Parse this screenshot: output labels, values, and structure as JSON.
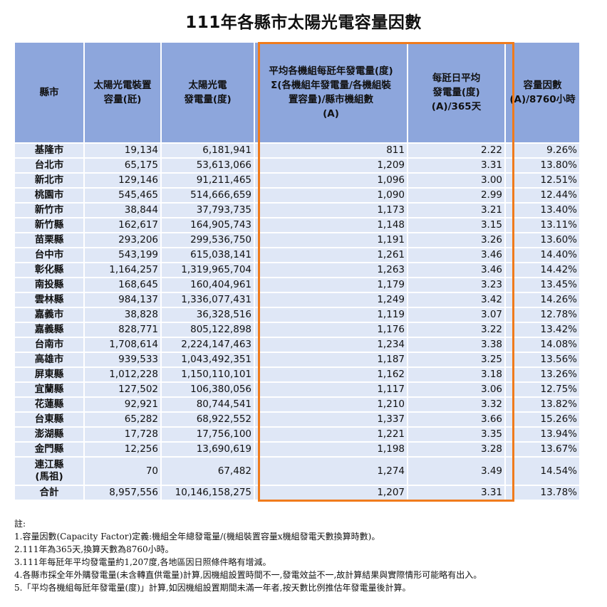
{
  "title": "111年各縣市太陽光電容量因數",
  "headers": [
    "縣市",
    "太陽光電裝置\n容量(瓩)",
    "太陽光電\n發電量(度)",
    "平均各機組每瓩年發電量(度)\nΣ(各機組年發電量/各機組裝\n置容量)/縣市機組數\n(A)",
    "每瓩日平均\n發電量(度)\n(A)/365天",
    "容量因數\n(A)/8760小時"
  ],
  "rows": [
    {
      "county": "基隆市",
      "capacity": "19,134",
      "generation": "6,181,941",
      "annual": "811",
      "daily": "2.22",
      "cf": "9.26%"
    },
    {
      "county": "台北市",
      "capacity": "65,175",
      "generation": "53,613,066",
      "annual": "1,209",
      "daily": "3.31",
      "cf": "13.80%"
    },
    {
      "county": "新北市",
      "capacity": "129,146",
      "generation": "91,211,465",
      "annual": "1,096",
      "daily": "3.00",
      "cf": "12.51%"
    },
    {
      "county": "桃園市",
      "capacity": "545,465",
      "generation": "514,666,659",
      "annual": "1,090",
      "daily": "2.99",
      "cf": "12.44%"
    },
    {
      "county": "新竹市",
      "capacity": "38,844",
      "generation": "37,793,735",
      "annual": "1,173",
      "daily": "3.21",
      "cf": "13.40%"
    },
    {
      "county": "新竹縣",
      "capacity": "162,617",
      "generation": "164,905,743",
      "annual": "1,148",
      "daily": "3.15",
      "cf": "13.11%"
    },
    {
      "county": "苗栗縣",
      "capacity": "293,206",
      "generation": "299,536,750",
      "annual": "1,191",
      "daily": "3.26",
      "cf": "13.60%"
    },
    {
      "county": "台中市",
      "capacity": "543,199",
      "generation": "615,038,141",
      "annual": "1,261",
      "daily": "3.46",
      "cf": "14.40%"
    },
    {
      "county": "彰化縣",
      "capacity": "1,164,257",
      "generation": "1,319,965,704",
      "annual": "1,263",
      "daily": "3.46",
      "cf": "14.42%"
    },
    {
      "county": "南投縣",
      "capacity": "168,645",
      "generation": "160,404,961",
      "annual": "1,179",
      "daily": "3.23",
      "cf": "13.45%"
    },
    {
      "county": "雲林縣",
      "capacity": "984,137",
      "generation": "1,336,077,431",
      "annual": "1,249",
      "daily": "3.42",
      "cf": "14.26%"
    },
    {
      "county": "嘉義市",
      "capacity": "38,828",
      "generation": "36,328,516",
      "annual": "1,119",
      "daily": "3.07",
      "cf": "12.78%"
    },
    {
      "county": "嘉義縣",
      "capacity": "828,771",
      "generation": "805,122,898",
      "annual": "1,176",
      "daily": "3.22",
      "cf": "13.42%"
    },
    {
      "county": "台南市",
      "capacity": "1,708,614",
      "generation": "2,224,147,463",
      "annual": "1,234",
      "daily": "3.38",
      "cf": "14.08%"
    },
    {
      "county": "高雄市",
      "capacity": "939,533",
      "generation": "1,043,492,351",
      "annual": "1,187",
      "daily": "3.25",
      "cf": "13.56%"
    },
    {
      "county": "屏東縣",
      "capacity": "1,012,228",
      "generation": "1,150,110,101",
      "annual": "1,162",
      "daily": "3.18",
      "cf": "13.26%"
    },
    {
      "county": "宜蘭縣",
      "capacity": "127,502",
      "generation": "106,380,056",
      "annual": "1,117",
      "daily": "3.06",
      "cf": "12.75%"
    },
    {
      "county": "花蓮縣",
      "capacity": "92,921",
      "generation": "80,744,541",
      "annual": "1,210",
      "daily": "3.32",
      "cf": "13.82%"
    },
    {
      "county": "台東縣",
      "capacity": "65,282",
      "generation": "68,922,552",
      "annual": "1,337",
      "daily": "3.66",
      "cf": "15.26%"
    },
    {
      "county": "澎湖縣",
      "capacity": "17,728",
      "generation": "17,756,100",
      "annual": "1,221",
      "daily": "3.35",
      "cf": "13.94%"
    },
    {
      "county": "金門縣",
      "capacity": "12,256",
      "generation": "13,690,619",
      "annual": "1,198",
      "daily": "3.28",
      "cf": "13.67%"
    },
    {
      "county": "連江縣\n(馬祖)",
      "capacity": "70",
      "generation": "67,482",
      "annual": "1,274",
      "daily": "3.49",
      "cf": "14.54%",
      "tall": true
    },
    {
      "county": "合計",
      "capacity": "8,957,556",
      "generation": "10,146,158,275",
      "annual": "1,207",
      "daily": "3.31",
      "cf": "13.78%"
    }
  ],
  "notes": [
    "註:",
    "1.容量因數(Capacity Factor)定義:機組全年總發電量/(機組裝置容量x機組發電天數換算時數)。",
    "2.111年為365天,換算天數為8760小時。",
    "3.111年每瓩年平均發電量約1,207度,各地區因日照條件略有增減。",
    "4.各縣市採全年外購發電量(未含轉直供電量)計算,因機組設置時間不一,發電效益不一,故計算結果與實際情形可能略有出入。",
    "5.「平均各機組每瓩年發電量(度)」計算,如因機組設置期間未滿一年者,按天數比例推估年發電量後計算。"
  ],
  "colors": {
    "header_bg": "#8da6dc",
    "cell_bg": "#dfe7f6",
    "highlight_border": "#f07b1c"
  }
}
